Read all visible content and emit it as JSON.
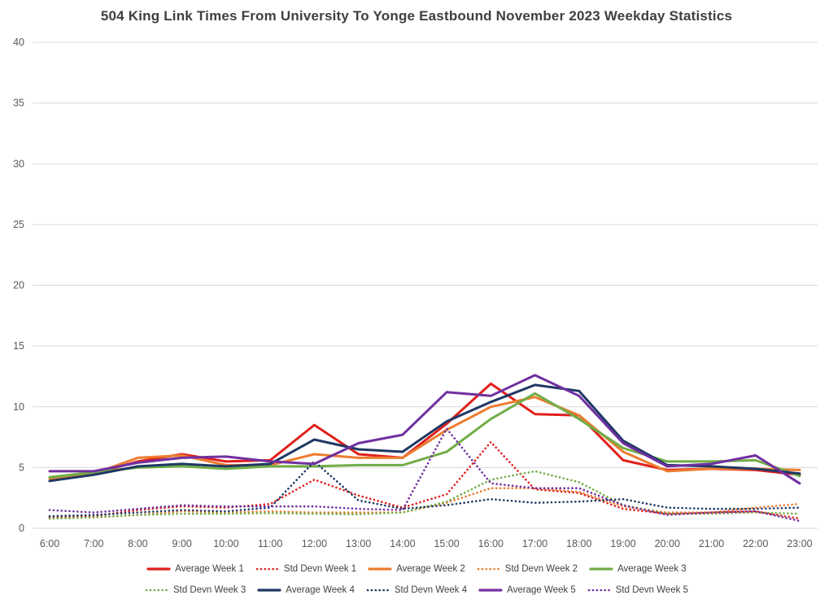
{
  "title": "504 King Link Times From University To Yonge Eastbound November 2023 Weekday Statistics",
  "chart_data": {
    "type": "line",
    "x_labels": [
      "6:00",
      "7:00",
      "8:00",
      "9:00",
      "10:00",
      "11:00",
      "12:00",
      "13:00",
      "14:00",
      "15:00",
      "16:00",
      "17:00",
      "18:00",
      "19:00",
      "20:00",
      "21:00",
      "22:00",
      "23:00"
    ],
    "y_ticks": [
      0,
      5,
      10,
      15,
      20,
      25,
      30,
      35,
      40
    ],
    "ylim": [
      0,
      40
    ],
    "grid": "horizontal-light-gray",
    "legend_position": "bottom-two-rows",
    "axis_text_color": "#595959",
    "gridline_color": "#d9d9d9",
    "series": [
      {
        "name": "Average Week 1",
        "color": "#e0201c",
        "style": "solid",
        "values": [
          3.9,
          4.5,
          5.5,
          6.1,
          5.5,
          5.6,
          8.5,
          6.1,
          5.8,
          8.6,
          11.9,
          9.4,
          9.3,
          5.6,
          4.8,
          4.9,
          4.8,
          4.4
        ]
      },
      {
        "name": "Std Devn Week 1",
        "color": "#e0201c",
        "style": "dotted",
        "values": [
          0.9,
          1.0,
          1.5,
          1.8,
          1.7,
          2.0,
          4.0,
          2.7,
          1.7,
          2.8,
          7.1,
          3.2,
          2.9,
          1.6,
          1.2,
          1.3,
          1.4,
          0.8
        ]
      },
      {
        "name": "Average Week 2",
        "color": "#ed7d31",
        "style": "solid",
        "values": [
          4.1,
          4.5,
          5.8,
          6.0,
          5.2,
          5.2,
          6.1,
          5.8,
          5.8,
          8.1,
          10.0,
          10.8,
          9.3,
          6.3,
          4.7,
          4.9,
          4.9,
          4.8
        ]
      },
      {
        "name": "Std Devn Week 2",
        "color": "#ed7d31",
        "style": "dotted",
        "values": [
          0.8,
          0.9,
          1.1,
          1.4,
          1.3,
          1.4,
          1.3,
          1.3,
          1.3,
          2.1,
          3.3,
          3.3,
          3.0,
          1.8,
          1.3,
          1.3,
          1.7,
          2.0
        ]
      },
      {
        "name": "Average Week 3",
        "color": "#70ad47",
        "style": "solid",
        "values": [
          4.2,
          4.6,
          5.0,
          5.1,
          4.9,
          5.1,
          5.1,
          5.2,
          5.2,
          6.3,
          9.0,
          11.1,
          9.0,
          6.6,
          5.5,
          5.5,
          5.6,
          4.3
        ]
      },
      {
        "name": "Std Devn Week 3",
        "color": "#70ad47",
        "style": "dotted",
        "values": [
          0.8,
          0.9,
          1.1,
          1.2,
          1.2,
          1.25,
          1.2,
          1.15,
          1.3,
          2.2,
          4.0,
          4.7,
          3.8,
          1.9,
          1.2,
          1.2,
          1.3,
          1.2
        ]
      },
      {
        "name": "Average Week 4",
        "color": "#1f3864",
        "style": "solid",
        "values": [
          3.9,
          4.4,
          5.1,
          5.3,
          5.1,
          5.3,
          7.3,
          6.5,
          6.3,
          8.8,
          10.4,
          11.8,
          11.3,
          7.2,
          5.2,
          5.1,
          4.9,
          4.5
        ]
      },
      {
        "name": "Std Devn Week 4",
        "color": "#1f3864",
        "style": "dotted",
        "values": [
          1.0,
          1.1,
          1.3,
          1.5,
          1.4,
          1.7,
          5.5,
          2.3,
          1.6,
          1.9,
          2.4,
          2.1,
          2.2,
          2.4,
          1.7,
          1.6,
          1.6,
          1.7
        ]
      },
      {
        "name": "Average Week 5",
        "color": "#7030a0",
        "style": "solid",
        "values": [
          4.7,
          4.7,
          5.4,
          5.8,
          5.9,
          5.5,
          5.3,
          7.0,
          7.7,
          11.2,
          10.9,
          12.6,
          10.9,
          7.0,
          5.1,
          5.3,
          6.0,
          3.7
        ]
      },
      {
        "name": "Std Devn Week 5",
        "color": "#7030a0",
        "style": "dotted",
        "values": [
          1.5,
          1.3,
          1.6,
          1.9,
          1.8,
          1.8,
          1.8,
          1.6,
          1.5,
          8.2,
          3.7,
          3.3,
          3.3,
          1.9,
          1.1,
          1.3,
          1.4,
          0.6
        ]
      }
    ]
  }
}
